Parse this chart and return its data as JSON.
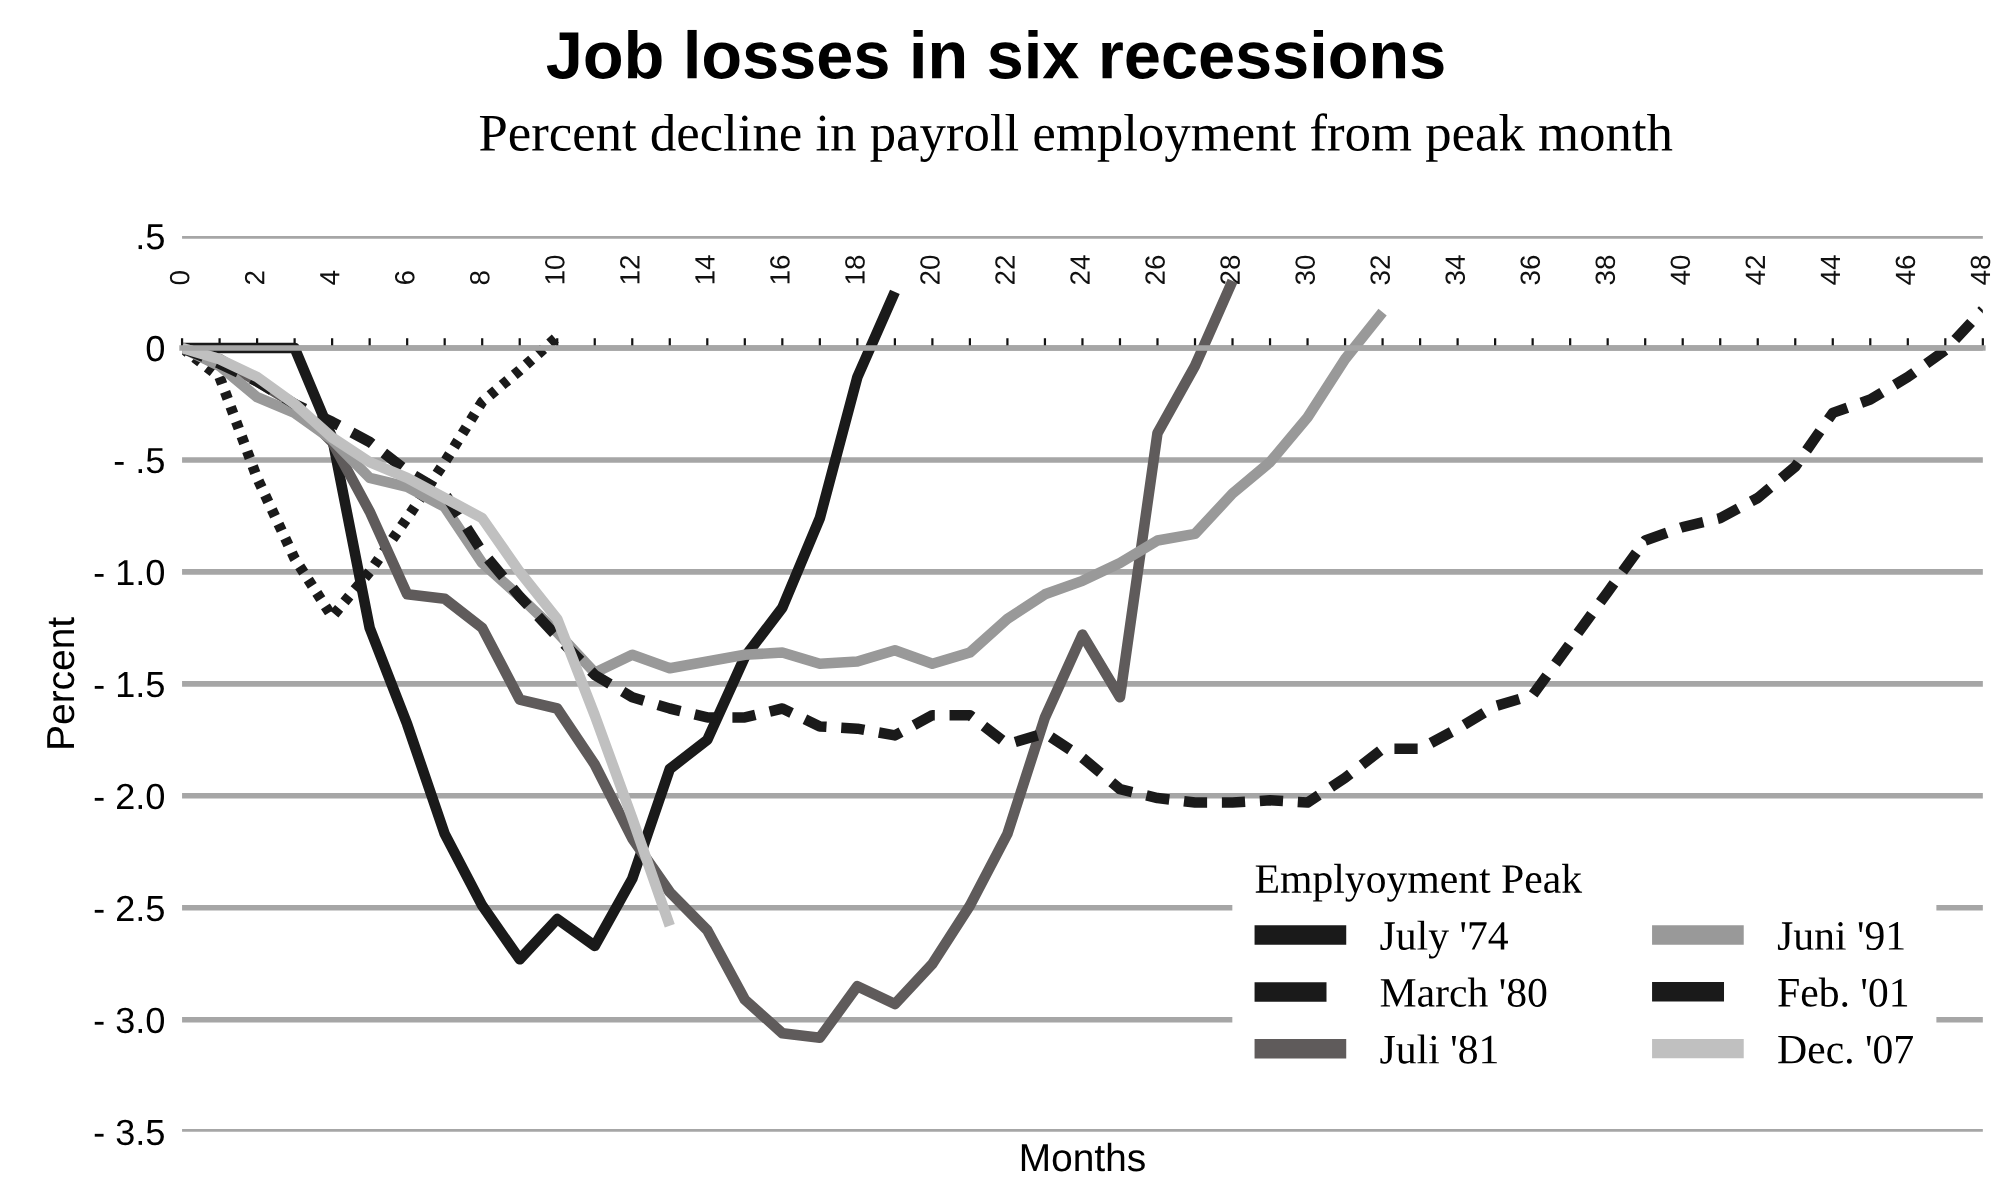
{
  "chart_data": {
    "type": "line",
    "title": "Job losses in six recessions",
    "subtitle": "Percent decline in payroll employment from peak month",
    "xlabel": "Months",
    "ylabel": "Percent",
    "legend_title": "Emplyoyment Peak",
    "xlim": [
      0,
      48
    ],
    "ylim": [
      -3.5,
      0.5
    ],
    "xticks": [
      0,
      {
        "value": 1,
        "label": null
      },
      2,
      {
        "value": 3,
        "label": null
      },
      4,
      {
        "value": 5,
        "label": null
      },
      6,
      {
        "value": 7,
        "label": null
      },
      8,
      {
        "value": 9,
        "label": null
      },
      10,
      {
        "value": 11,
        "label": null
      },
      12,
      {
        "value": 13,
        "label": null
      },
      14,
      {
        "value": 15,
        "label": null
      },
      16,
      {
        "value": 17,
        "label": null
      },
      18,
      {
        "value": 19,
        "label": null
      },
      20,
      {
        "value": 21,
        "label": null
      },
      22,
      {
        "value": 23,
        "label": null
      },
      24,
      {
        "value": 25,
        "label": null
      },
      26,
      {
        "value": 27,
        "label": null
      },
      28,
      {
        "value": 29,
        "label": null
      },
      30,
      {
        "value": 31,
        "label": null
      },
      32,
      {
        "value": 33,
        "label": null
      },
      34,
      {
        "value": 35,
        "label": null
      },
      36,
      {
        "value": 37,
        "label": null
      },
      38,
      {
        "value": 39,
        "label": null
      },
      40,
      {
        "value": 41,
        "label": null
      },
      42,
      {
        "value": 43,
        "label": null
      },
      44,
      {
        "value": 45,
        "label": null
      },
      46,
      {
        "value": 47,
        "label": null
      },
      48
    ],
    "yticks": [
      {
        "value": 0.5,
        "label": ".5"
      },
      0,
      {
        "value": -0.5,
        "label": "- .5"
      },
      {
        "value": -1.0,
        "label": "- 1.0"
      },
      {
        "value": -1.5,
        "label": "- 1.5"
      },
      {
        "value": -2.0,
        "label": "- 2.0"
      },
      {
        "value": -2.5,
        "label": "- 2.5"
      },
      {
        "value": -3.0,
        "label": "- 3.0"
      },
      {
        "value": -3.5,
        "label": "- 3.5"
      }
    ],
    "grid": "y",
    "legend": "bottom right",
    "marker": "none",
    "series": [
      {
        "name": "July '74",
        "color": "#1a1a1a",
        "line_style": "solid",
        "x": [
          0,
          1,
          2,
          3,
          4,
          5,
          6,
          7,
          8,
          9,
          10,
          11,
          12,
          13,
          14,
          15,
          16,
          17,
          18,
          19
        ],
        "values": [
          0,
          0,
          0,
          0,
          -0.4,
          -1.25,
          -1.68,
          -2.17,
          -2.49,
          -2.73,
          -2.55,
          -2.67,
          -2.37,
          -1.88,
          -1.75,
          -1.38,
          -1.16,
          -0.76,
          -0.13,
          0.25
        ]
      },
      {
        "name": "March '80",
        "color": "#1a1a1a",
        "line_style": "dotted",
        "x": [
          0,
          1,
          2,
          3,
          4,
          5,
          6,
          7,
          8,
          9,
          10
        ],
        "values": [
          0,
          -0.13,
          -0.58,
          -0.94,
          -1.2,
          -1.0,
          -0.76,
          -0.51,
          -0.24,
          -0.1,
          0.05
        ]
      },
      {
        "name": "Juli '81",
        "color": "#5f5b5b",
        "line_style": "solid",
        "x": [
          0,
          1,
          2,
          3,
          4,
          5,
          6,
          7,
          8,
          9,
          10,
          11,
          12,
          13,
          14,
          15,
          16,
          17,
          18,
          19,
          20,
          21,
          22,
          23,
          24,
          25,
          26,
          27,
          28
        ],
        "values": [
          0,
          -0.05,
          -0.15,
          -0.25,
          -0.42,
          -0.73,
          -1.1,
          -1.12,
          -1.25,
          -1.57,
          -1.61,
          -1.86,
          -2.19,
          -2.43,
          -2.6,
          -2.91,
          -3.06,
          -3.08,
          -2.85,
          -2.93,
          -2.75,
          -2.49,
          -2.17,
          -1.65,
          -1.28,
          -1.56,
          -0.38,
          -0.08,
          0.3
        ]
      },
      {
        "name": "Juni '91",
        "color": "#999999",
        "line_style": "solid",
        "x": [
          0,
          1,
          2,
          3,
          4,
          5,
          6,
          7,
          8,
          9,
          10,
          11,
          12,
          13,
          14,
          15,
          16,
          17,
          18,
          19,
          20,
          21,
          22,
          23,
          24,
          25,
          26,
          27,
          28,
          29,
          30,
          31,
          32
        ],
        "values": [
          0,
          -0.08,
          -0.22,
          -0.29,
          -0.41,
          -0.58,
          -0.62,
          -0.71,
          -0.96,
          -1.11,
          -1.27,
          -1.45,
          -1.37,
          -1.43,
          -1.4,
          -1.37,
          -1.36,
          -1.41,
          -1.4,
          -1.35,
          -1.41,
          -1.36,
          -1.21,
          -1.1,
          -1.04,
          -0.96,
          -0.86,
          -0.83,
          -0.65,
          -0.51,
          -0.31,
          -0.05,
          0.16
        ]
      },
      {
        "name": "Feb. '01",
        "color": "#1a1a1a",
        "line_style": "dashed",
        "x": [
          0,
          1,
          2,
          3,
          4,
          5,
          6,
          7,
          8,
          9,
          10,
          11,
          12,
          13,
          14,
          15,
          16,
          17,
          18,
          19,
          20,
          21,
          22,
          23,
          24,
          25,
          26,
          27,
          28,
          29,
          30,
          31,
          32,
          33,
          34,
          35,
          36,
          37,
          38,
          39,
          40,
          41,
          42,
          43,
          44,
          45,
          46,
          47,
          48
        ],
        "values": [
          0,
          -0.07,
          -0.15,
          -0.25,
          -0.33,
          -0.42,
          -0.55,
          -0.65,
          -0.91,
          -1.11,
          -1.29,
          -1.46,
          -1.56,
          -1.61,
          -1.65,
          -1.65,
          -1.61,
          -1.69,
          -1.7,
          -1.73,
          -1.64,
          -1.64,
          -1.77,
          -1.72,
          -1.83,
          -1.97,
          -2.01,
          -2.03,
          -2.03,
          -2.02,
          -2.03,
          -1.92,
          -1.79,
          -1.79,
          -1.7,
          -1.6,
          -1.55,
          -1.32,
          -1.09,
          -0.86,
          -0.8,
          -0.76,
          -0.67,
          -0.53,
          -0.29,
          -0.23,
          -0.13,
          -0.01,
          0.17
        ]
      },
      {
        "name": "Dec. '07",
        "color": "#c0c0c0",
        "line_style": "solid",
        "x": [
          0,
          1,
          2,
          3,
          4,
          5,
          6,
          7,
          8,
          9,
          10,
          11,
          12,
          13
        ],
        "values": [
          0,
          -0.05,
          -0.13,
          -0.25,
          -0.4,
          -0.51,
          -0.58,
          -0.67,
          -0.76,
          -1.0,
          -1.21,
          -1.64,
          -2.1,
          -2.58
        ]
      }
    ]
  }
}
